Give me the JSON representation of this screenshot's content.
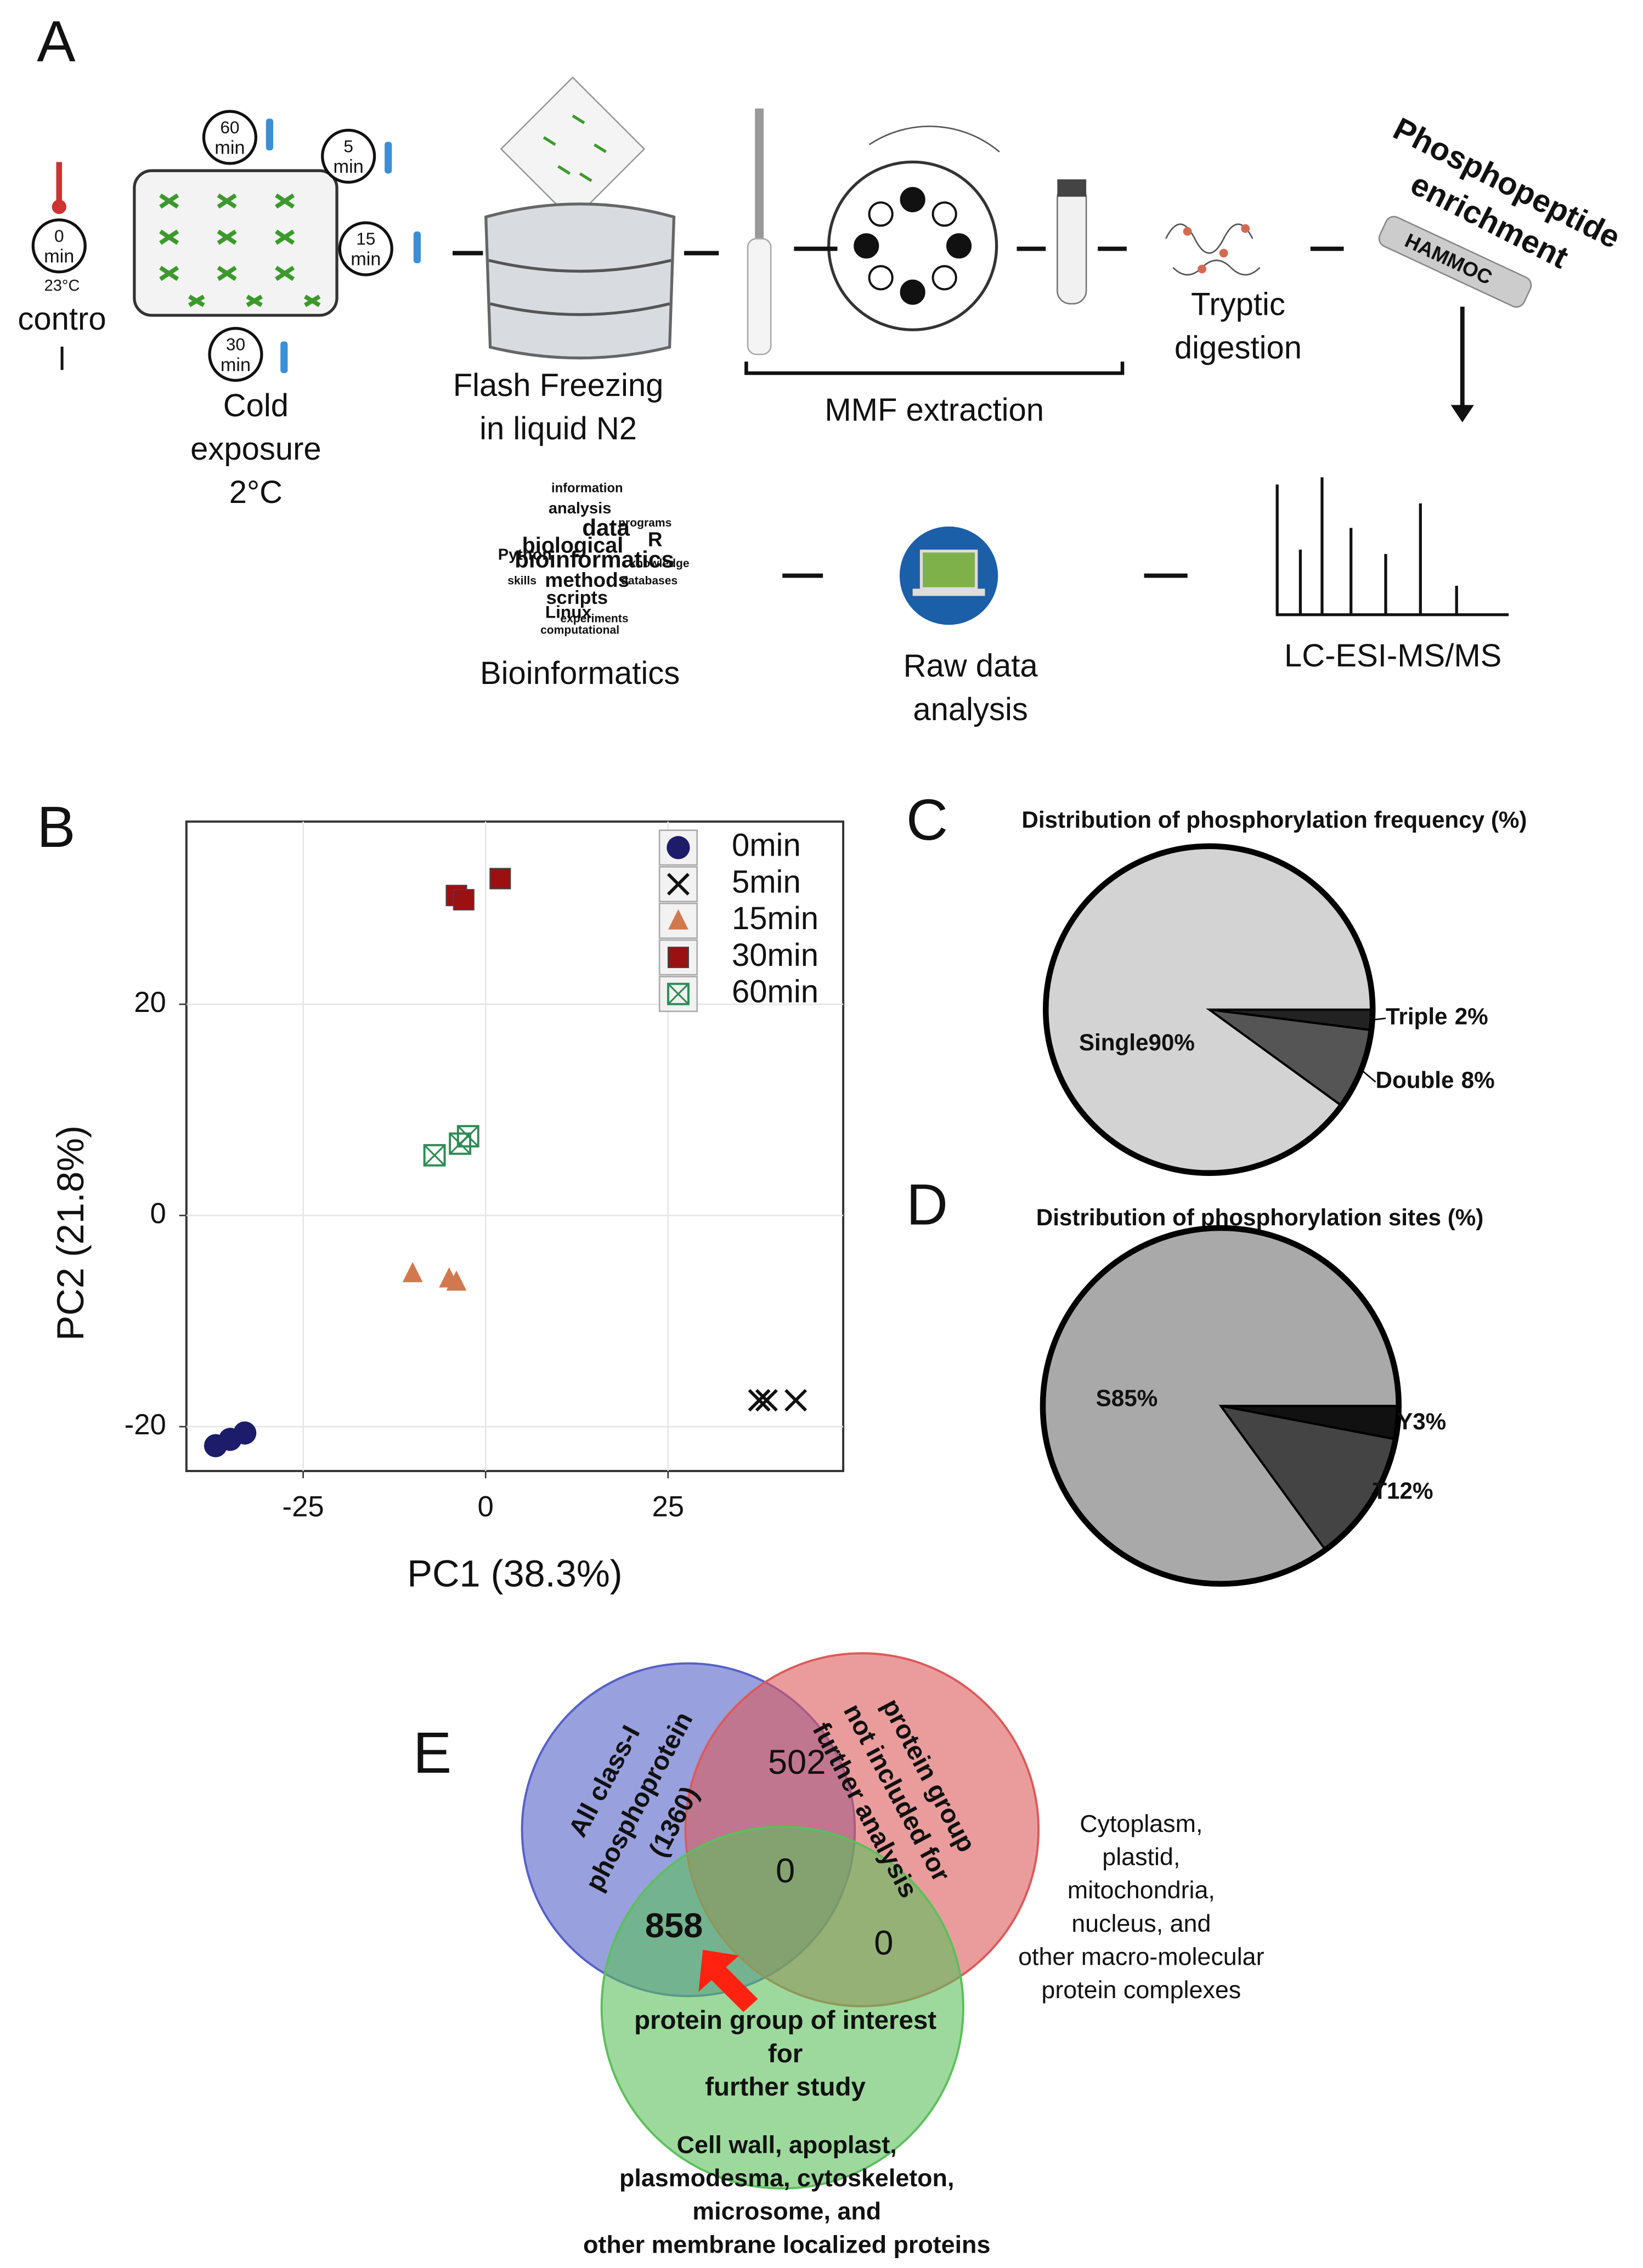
{
  "panel_labels": [
    "A",
    "B",
    "C",
    "D",
    "E"
  ],
  "workflow": {
    "control": {
      "clock": [
        "0",
        "min"
      ],
      "temperature": "23°C",
      "label": [
        "contro",
        "l"
      ]
    },
    "timepoints": [
      [
        "60",
        "min"
      ],
      [
        "5",
        "min"
      ],
      [
        "15",
        "min"
      ],
      [
        "30",
        "min"
      ]
    ],
    "cold_exposure": [
      "Cold",
      "exposure",
      "2°C"
    ],
    "flash_freezing": [
      "Flash Freezing",
      "in liquid N2"
    ],
    "mmf_extraction": "MMF extraction",
    "tryptic_digestion": [
      "Tryptic",
      "digestion"
    ],
    "phosphopeptide_enrichment": [
      "Phosphopeptide",
      "enrichment"
    ],
    "syringe_label": "HAMMOC",
    "lc_ms": "LC-ESI-MS/MS",
    "raw_data_analysis": [
      "Raw data",
      "analysis"
    ],
    "bioinformatics": "Bioinformatics",
    "word_cloud": [
      "information",
      "analysis",
      "data",
      "biological",
      "bioinformatics",
      "methods",
      "scripts",
      "Linux",
      "Python",
      "experiments",
      "computational",
      "R",
      "programs",
      "knowledge",
      "databases",
      "skills"
    ]
  },
  "chart_data": [
    {
      "type": "scatter",
      "xlabel": "PC1 (38.3%)",
      "ylabel": "PC2 (21.8%)",
      "xlim": [
        -41,
        49
      ],
      "ylim": [
        -24.2,
        37.3
      ],
      "xticks": [
        -25,
        0,
        25
      ],
      "yticks": [
        -20,
        0,
        20
      ],
      "grid": true,
      "legend": "top-right",
      "series": [
        {
          "name": "0min",
          "color": "#1c1c6b",
          "marker": "circle",
          "x": [
            -37,
            -35,
            -33
          ],
          "values": [
            -21.8,
            -21.2,
            -20.6
          ]
        },
        {
          "name": "5min",
          "color": "#111111",
          "marker": "x",
          "x": [
            37.5,
            38.5,
            42.5
          ],
          "values": [
            -17.5,
            -17.5,
            -17.5
          ]
        },
        {
          "name": "15min",
          "color": "#d2784f",
          "marker": "triangle",
          "x": [
            -10,
            -5,
            -4
          ],
          "values": [
            -5.5,
            -6,
            -6.3
          ]
        },
        {
          "name": "30min",
          "color": "#9b1111",
          "marker": "square",
          "x": [
            -4,
            -3,
            2
          ],
          "values": [
            30.3,
            29.9,
            31.9
          ]
        },
        {
          "name": "60min",
          "color": "#2e8b57",
          "marker": "boxx",
          "x": [
            -7,
            -3.5,
            -2.4
          ],
          "values": [
            5.7,
            6.8,
            7.5
          ]
        }
      ]
    },
    {
      "type": "pie",
      "title": "Distribution of phosphorylation frequency (%)",
      "categories": [
        "Single",
        "Double",
        "Triple"
      ],
      "values": [
        90,
        8,
        2
      ],
      "value_labels": [
        "90%",
        "8%",
        "2%"
      ],
      "colors": [
        "#d3d3d3",
        "#555555",
        "#222222"
      ]
    },
    {
      "type": "pie",
      "title": "Distribution of phosphorylation sites (%)",
      "categories": [
        "S",
        "T",
        "Y"
      ],
      "values": [
        85,
        12,
        3
      ],
      "value_labels": [
        "85%",
        "12%",
        "3%"
      ],
      "colors": [
        "#a9a9a9",
        "#444444",
        "#111111"
      ]
    }
  ],
  "venn": {
    "sets": [
      {
        "label": [
          "All class-I",
          "phosphoprotein",
          "(1360)"
        ],
        "color": "#5560c8"
      },
      {
        "label": [
          "protein group",
          "not included for",
          "further analysis"
        ],
        "color": "#dc5a5a"
      },
      {
        "label": [
          "protein group of interest",
          "for",
          "further study"
        ],
        "color": "#5cbf5c"
      }
    ],
    "regions": {
      "set1_set2": 502,
      "all": 0,
      "set1_set3": 858,
      "set2_set3": 0
    },
    "excluded_locations": [
      "Cytoplasm,",
      "plastid,",
      "mitochondria,",
      "nucleus, and",
      "other macro-molecular",
      "protein complexes"
    ],
    "interest_locations": [
      "Cell wall, apoplast,",
      "plasmodesma, cytoskeleton,",
      "microsome, and",
      "other membrane localized proteins"
    ]
  }
}
